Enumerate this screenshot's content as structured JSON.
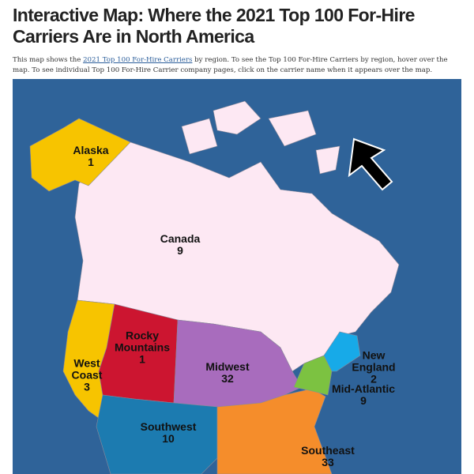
{
  "header": {
    "title": "Interactive Map: Where the 2021 Top 100 For-Hire Carriers Are in North America"
  },
  "description": {
    "before": "This map shows the",
    "link": "2021 Top 100 For-Hire Carriers",
    "after": "by region. To see the Top 100 For-Hire Carriers by region, hover over the map. To see individual Top 100 For-Hire Carrier company pages, click on the carrier name when it appears over the map."
  },
  "map": {
    "regions": [
      {
        "name": "Alaska",
        "count": 1
      },
      {
        "name": "Canada",
        "count": 9
      },
      {
        "name": "Rocky Mountains",
        "count": 1
      },
      {
        "name": "West Coast",
        "count": 3
      },
      {
        "name": "Midwest",
        "count": 32
      },
      {
        "name": "New England",
        "count": 2
      },
      {
        "name": "Mid-Atlantic",
        "count": 9
      },
      {
        "name": "Southwest",
        "count": 10
      },
      {
        "name": "Southeast",
        "count": 33
      }
    ]
  }
}
